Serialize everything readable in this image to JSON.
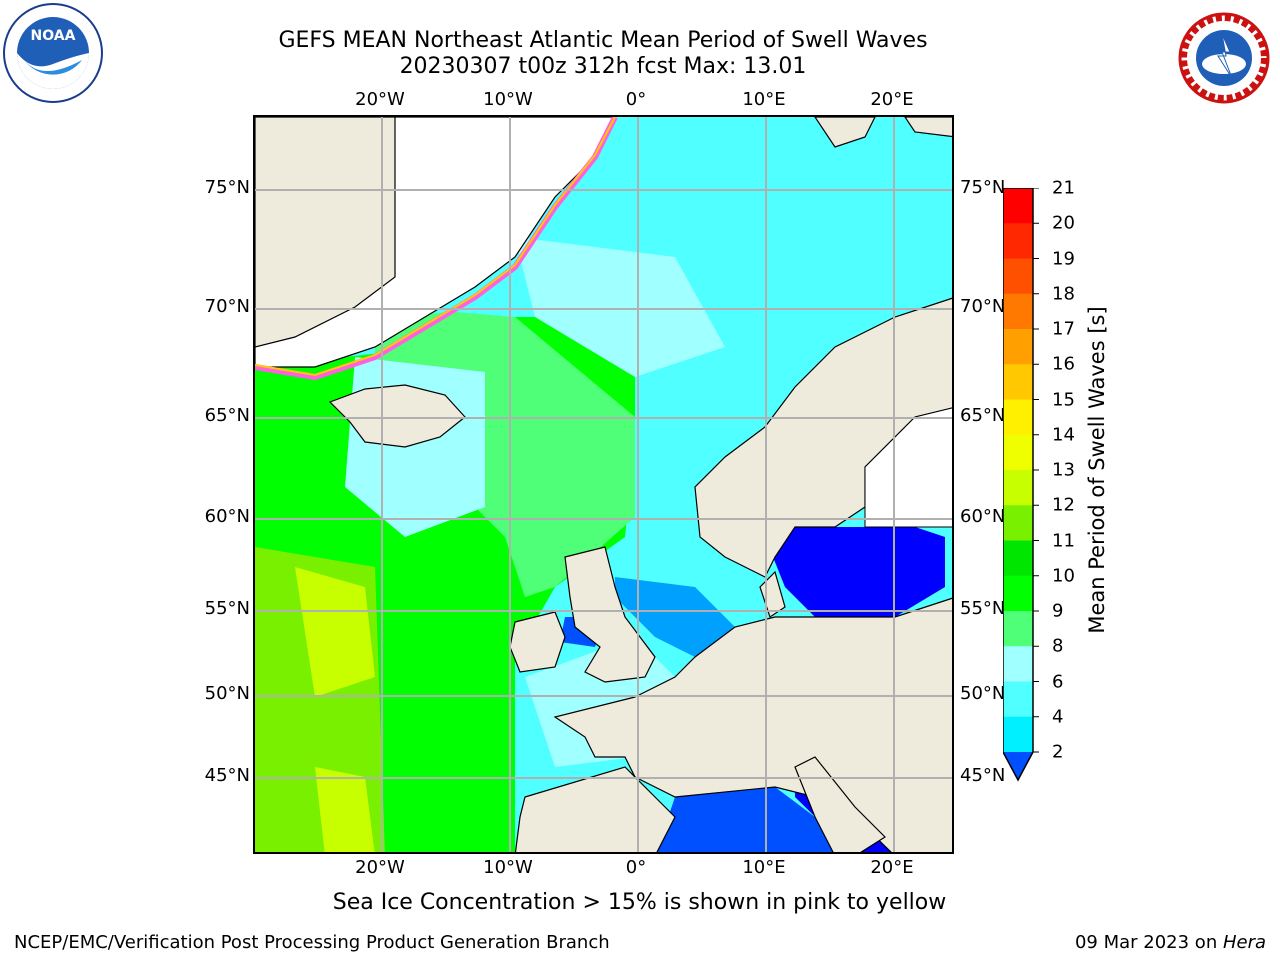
{
  "title": {
    "line1": "GEFS MEAN Northeast Atlantic Mean Period of Swell Waves",
    "line2": "20230307 t00z 312h fcst   Max: 13.01"
  },
  "logos": {
    "left": {
      "name": "noaa-logo",
      "text": "NOAA",
      "ring_text": "NATIONAL OCEANIC AND ATMOSPHERIC ADMINISTRATION · U.S. DEPARTMENT OF COMMERCE"
    },
    "right": {
      "name": "nws-logo",
      "ring_text": "NATIONAL WEATHER SERVICE"
    }
  },
  "axes": {
    "lon_labels": [
      "20°W",
      "10°W",
      "0°",
      "10°E",
      "20°E"
    ],
    "lat_labels": [
      "75°N",
      "70°N",
      "65°N",
      "60°N",
      "55°N",
      "50°N",
      "45°N"
    ]
  },
  "colorbar": {
    "title": "Mean Period of Swell Waves [s]",
    "levels": [
      "21",
      "20",
      "19",
      "18",
      "17",
      "16",
      "15",
      "14",
      "13",
      "12",
      "11",
      "10",
      "9",
      "8",
      "6",
      "4",
      "2"
    ],
    "colors": [
      "#ff0000",
      "#ff2800",
      "#ff5000",
      "#ff7800",
      "#ffa000",
      "#ffc800",
      "#fff000",
      "#f0ff00",
      "#c8ff00",
      "#78f000",
      "#00e600",
      "#00ff00",
      "#50ff78",
      "#a0ffff",
      "#50ffff",
      "#00f0ff",
      "#00a0ff",
      "#0050ff"
    ],
    "extend": "min"
  },
  "map_colors": {
    "land": "#efebdc",
    "ice_free_white": "#ffffff",
    "coast": "#000000",
    "grid": "#b0b0b0"
  },
  "notes": {
    "ice": "Sea Ice Concentration > 15% is shown in pink to yellow"
  },
  "footer": {
    "left": "NCEP/EMC/Verification Post Processing Product Generation Branch",
    "date": "09 Mar 2023 on ",
    "host": "Hera"
  }
}
